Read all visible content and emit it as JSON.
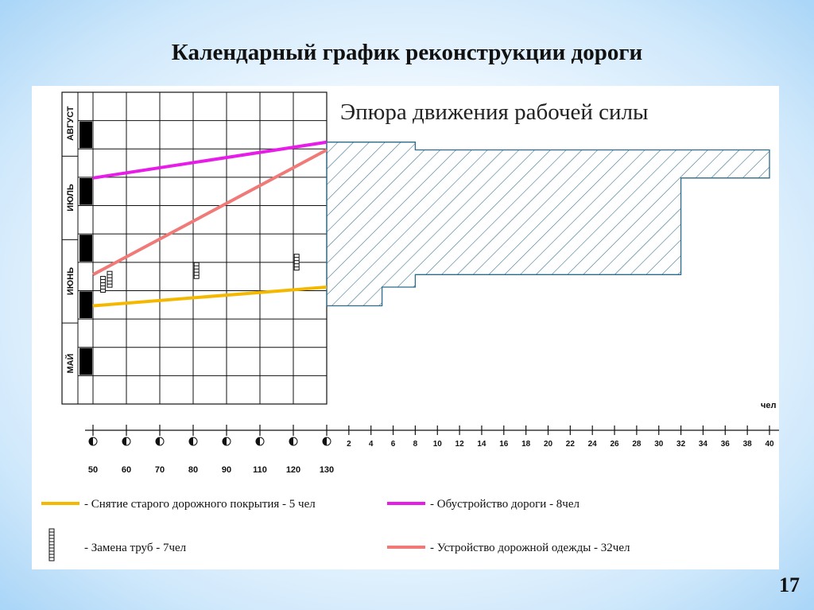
{
  "slide": {
    "title": "Календарный график реконструкции дороги",
    "page_number": "17"
  },
  "chart_data": [
    {
      "type": "line",
      "title": "",
      "x_axis": {
        "ticks": [
          50,
          60,
          70,
          80,
          90,
          110,
          120,
          130
        ]
      },
      "y_axis": {
        "months": [
          "МАЙ",
          "ИЮНЬ",
          "ИЮЛЬ",
          "АВГУСТ"
        ]
      },
      "series": [
        {
          "name": "Снятие старого дорожного покрытия - 5 чел",
          "color": "#f5b800",
          "y_start": 0.685,
          "y_end": 0.625
        },
        {
          "name": "Обустройство дороги - 8чел",
          "color": "#e81ce8",
          "y_start": 0.275,
          "y_end": 0.16
        },
        {
          "name": "Устройство дорожной одежды - 32чел",
          "color": "#f07a78",
          "y_start": 0.585,
          "y_end": 0.185
        }
      ],
      "pipe_markers": [
        {
          "x": 53,
          "y": 0.616
        },
        {
          "x": 55,
          "y": 0.6
        },
        {
          "x": 81,
          "y": 0.572
        },
        {
          "x": 121,
          "y": 0.545
        }
      ],
      "legend": [
        {
          "key": "snyatie",
          "label": "- Снятие старого дорожного покрытия - 5 чел",
          "color": "#f5b800",
          "style": "line"
        },
        {
          "key": "obustroistvo",
          "label": "- Обустройство дороги - 8чел",
          "color": "#e81ce8",
          "style": "line"
        },
        {
          "key": "truby",
          "label": "- Замена труб - 7чел",
          "color": "#111111",
          "style": "pipe"
        },
        {
          "key": "odezhda",
          "label": "- Устройство дорожной одежды - 32чел",
          "color": "#f07a78",
          "style": "line"
        }
      ]
    },
    {
      "type": "area",
      "title": "Эпюра движения рабочей силы",
      "x_unit": "чел",
      "x_axis": {
        "ticks": [
          2,
          4,
          6,
          8,
          10,
          12,
          14,
          16,
          18,
          20,
          22,
          24,
          26,
          28,
          30,
          32,
          34,
          36,
          38,
          40
        ],
        "xlim": [
          0,
          40
        ]
      },
      "fill": "diagonal-hatch",
      "stroke_color": "#2a6a8a",
      "profile": [
        {
          "y_from": 0.16,
          "y_to": 0.185,
          "workers": 8
        },
        {
          "y_from": 0.185,
          "y_to": 0.275,
          "workers": 40
        },
        {
          "y_from": 0.275,
          "y_to": 0.585,
          "workers": 32
        },
        {
          "y_from": 0.585,
          "y_to": 0.625,
          "workers": 8
        },
        {
          "y_from": 0.625,
          "y_to": 0.685,
          "workers": 5
        }
      ]
    }
  ]
}
